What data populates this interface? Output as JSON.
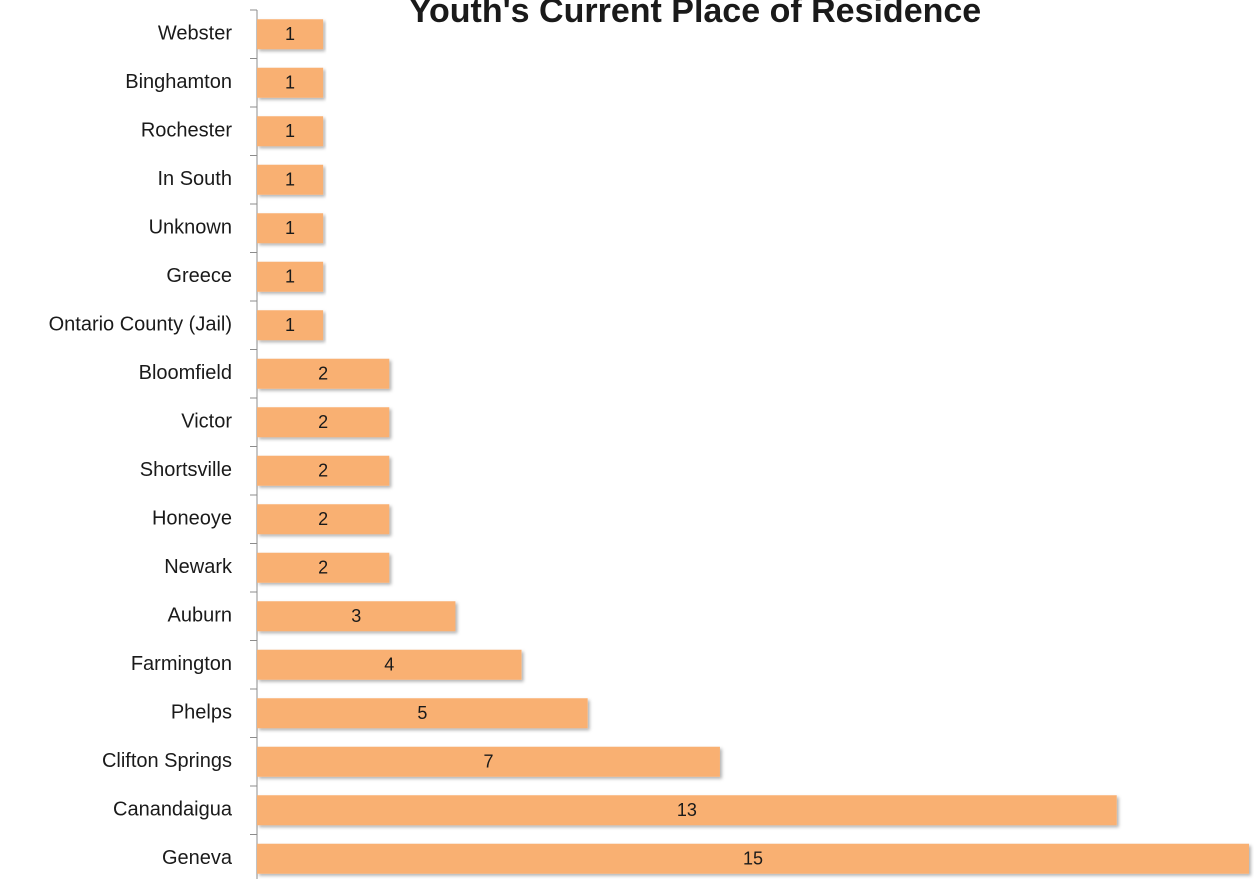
{
  "chart_data": {
    "type": "bar",
    "orientation": "horizontal",
    "title": "Youth's Current Place of Residence",
    "categories": [
      "Webster",
      "Binghamton",
      "Rochester",
      "In South",
      "Unknown",
      "Greece",
      "Ontario County (Jail)",
      "Bloomfield",
      "Victor",
      "Shortsville",
      "Honeoye",
      "Newark",
      "Auburn",
      "Farmington",
      "Phelps",
      "Clifton Springs",
      "Canandaigua",
      "Geneva"
    ],
    "values": [
      1,
      1,
      1,
      1,
      1,
      1,
      1,
      2,
      2,
      2,
      2,
      2,
      3,
      4,
      5,
      7,
      13,
      15
    ],
    "color": "#f9b072",
    "xlim": [
      0,
      15
    ]
  }
}
